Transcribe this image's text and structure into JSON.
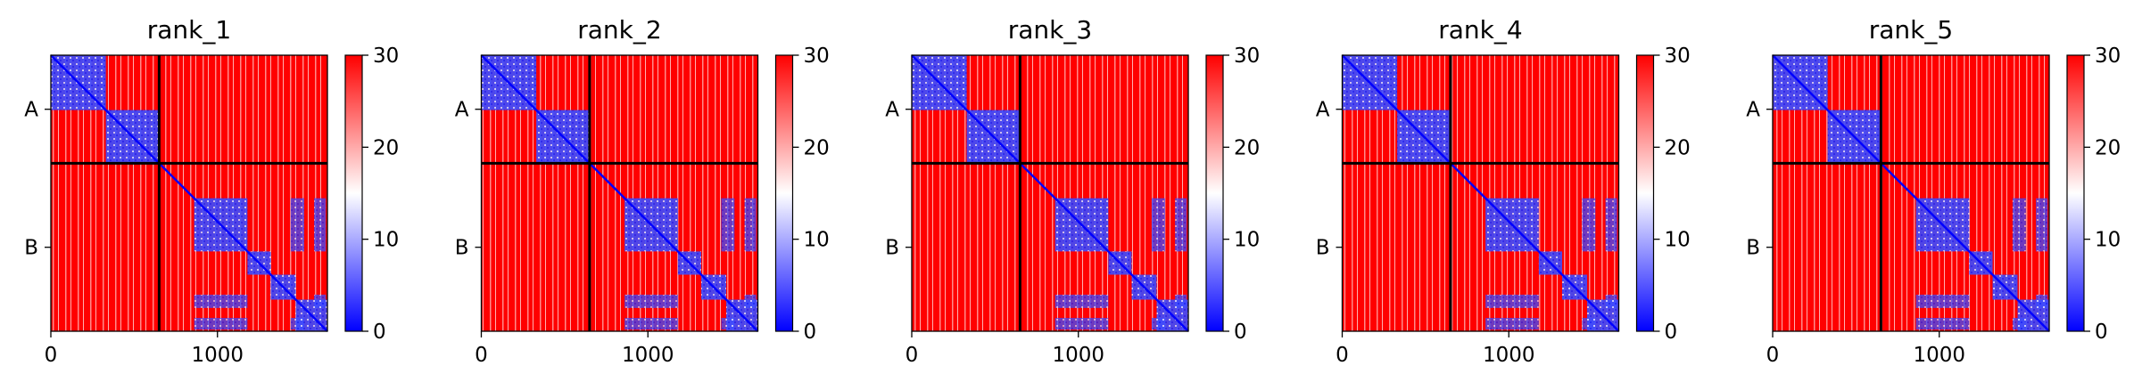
{
  "figure": {
    "layout": "1x5 heatmap panels with colorbars"
  },
  "chart_data": [
    {
      "type": "heatmap",
      "title": "rank_1",
      "matrix_size": 1660,
      "chain_boundary": 650,
      "chain_labels": [
        "A",
        "B"
      ],
      "chain_label_positions": [
        325,
        1155
      ],
      "xticks": [
        0,
        1000
      ],
      "xlim": [
        0,
        1660
      ],
      "colorbar": {
        "min": 0,
        "max": 30,
        "ticks": [
          0,
          10,
          20,
          30
        ],
        "colormap": [
          "#0000ff",
          "#ffffff",
          "#ff0000"
        ]
      },
      "grid": false
    },
    {
      "type": "heatmap",
      "title": "rank_2",
      "matrix_size": 1660,
      "chain_boundary": 650,
      "chain_labels": [
        "A",
        "B"
      ],
      "chain_label_positions": [
        325,
        1155
      ],
      "xticks": [
        0,
        1000
      ],
      "xlim": [
        0,
        1660
      ],
      "colorbar": {
        "min": 0,
        "max": 30,
        "ticks": [
          0,
          10,
          20,
          30
        ],
        "colormap": [
          "#0000ff",
          "#ffffff",
          "#ff0000"
        ]
      },
      "grid": false
    },
    {
      "type": "heatmap",
      "title": "rank_3",
      "matrix_size": 1660,
      "chain_boundary": 650,
      "chain_labels": [
        "A",
        "B"
      ],
      "chain_label_positions": [
        325,
        1155
      ],
      "xticks": [
        0,
        1000
      ],
      "xlim": [
        0,
        1660
      ],
      "colorbar": {
        "min": 0,
        "max": 30,
        "ticks": [
          0,
          10,
          20,
          30
        ],
        "colormap": [
          "#0000ff",
          "#ffffff",
          "#ff0000"
        ]
      },
      "grid": false
    },
    {
      "type": "heatmap",
      "title": "rank_4",
      "matrix_size": 1660,
      "chain_boundary": 650,
      "chain_labels": [
        "A",
        "B"
      ],
      "chain_label_positions": [
        325,
        1155
      ],
      "xticks": [
        0,
        1000
      ],
      "xlim": [
        0,
        1660
      ],
      "colorbar": {
        "min": 0,
        "max": 30,
        "ticks": [
          0,
          10,
          20,
          30
        ],
        "colormap": [
          "#0000ff",
          "#ffffff",
          "#ff0000"
        ]
      },
      "grid": false
    },
    {
      "type": "heatmap",
      "title": "rank_5",
      "matrix_size": 1660,
      "chain_boundary": 650,
      "chain_labels": [
        "A",
        "B"
      ],
      "chain_label_positions": [
        325,
        1155
      ],
      "xticks": [
        0,
        1000
      ],
      "xlim": [
        0,
        1660
      ],
      "colorbar": {
        "min": 0,
        "max": 30,
        "ticks": [
          0,
          10,
          20,
          30
        ],
        "colormap": [
          "#0000ff",
          "#ffffff",
          "#ff0000"
        ]
      },
      "grid": false
    }
  ],
  "colors": {
    "high_error": "#ff0000",
    "mid": "#ffffff",
    "low_error": "#0000ff",
    "axis": "#000000"
  }
}
